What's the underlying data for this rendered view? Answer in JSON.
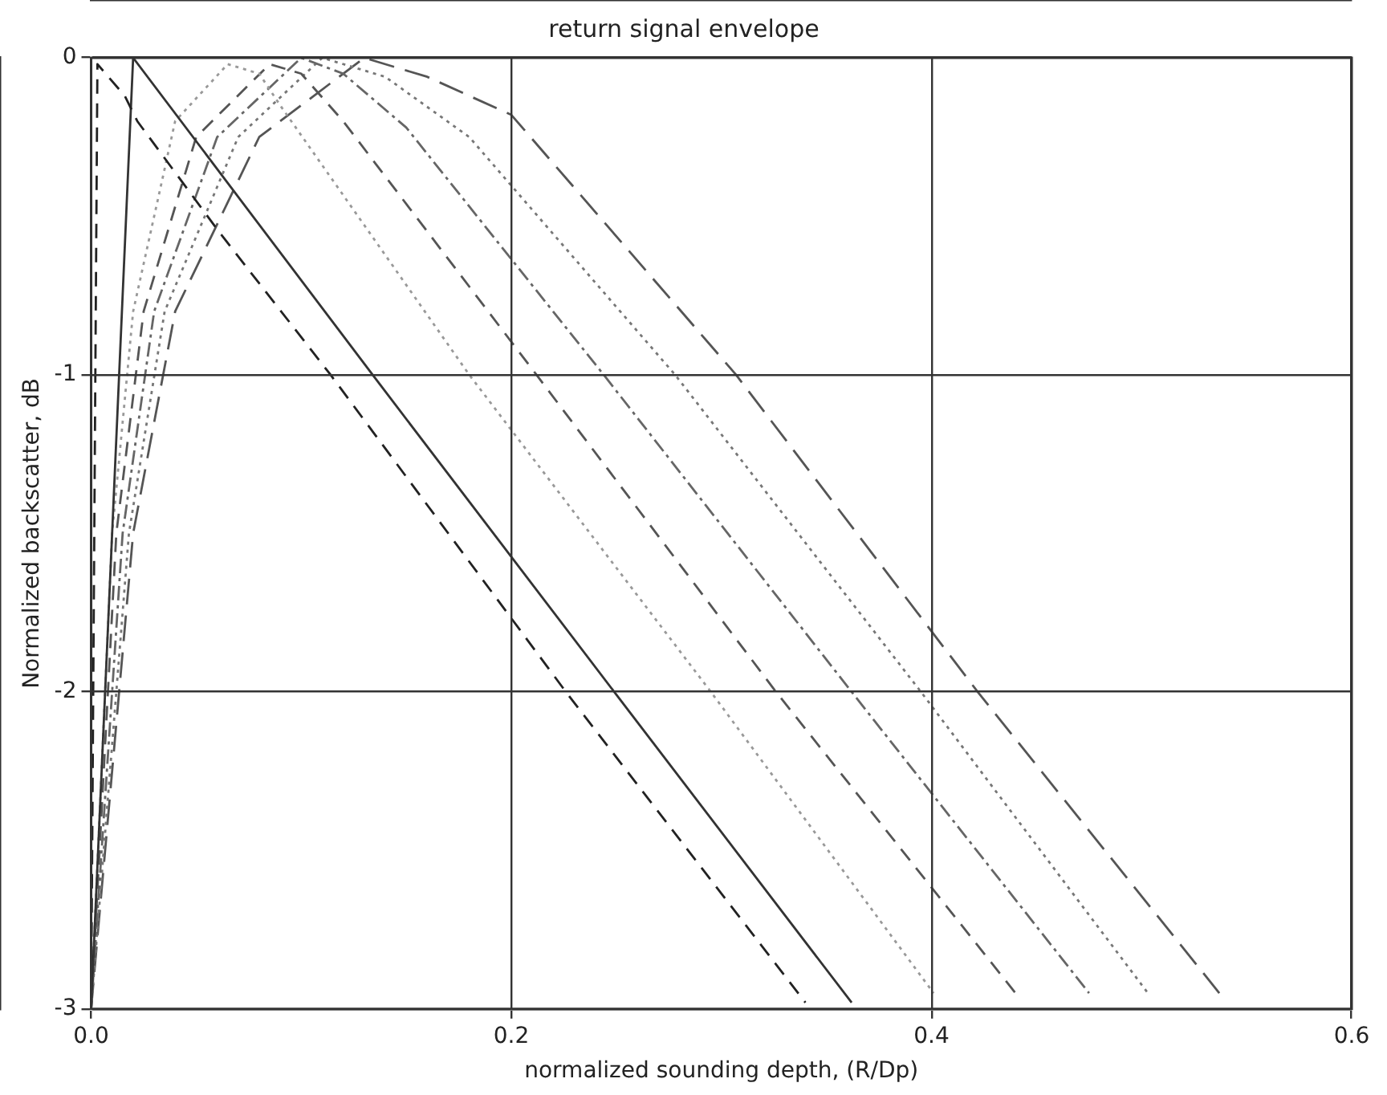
{
  "chart_data": {
    "type": "line",
    "title": "return signal envelope",
    "xlabel": "normalized sounding depth, (R/Dp)",
    "ylabel": "Normalized backscatter, dB",
    "xlim": [
      0,
      0.6
    ],
    "xticks": [
      {
        "value": 0,
        "label": "0.0"
      },
      0.2,
      0.4,
      0.6
    ],
    "ylim": [
      -3,
      0
    ],
    "yticks": [
      -3,
      -2,
      -1,
      0
    ],
    "grid": true,
    "legend": false,
    "marker": "none",
    "series": [
      {
        "color": "#222222",
        "line_style": "dashed",
        "x": [
          0,
          0.003,
          0.016,
          0.022,
          0.061,
          0.114,
          0.226,
          0.34
        ],
        "values": [
          -3,
          -0.02,
          -0.12,
          -0.2,
          -0.55,
          -1,
          -2,
          -2.98
        ]
      },
      {
        "color": "#333333",
        "line_style": "solid",
        "x": [
          0,
          0.01,
          0.02,
          0.134,
          0.249,
          0.362
        ],
        "values": [
          -3,
          -1.5,
          0,
          -1,
          -2,
          -2.98
        ]
      },
      {
        "color": "#999999",
        "line_style": "dotted",
        "x": [
          0,
          0.01,
          0.02,
          0.04,
          0.065,
          0.08,
          0.09,
          0.18,
          0.295,
          0.401
        ],
        "values": [
          -3,
          -1.5,
          -0.8,
          -0.2,
          -0.02,
          -0.05,
          -0.15,
          -1,
          -2,
          -2.95
        ]
      },
      {
        "color": "#555555",
        "line_style": "dashed",
        "x": [
          0,
          0.012,
          0.025,
          0.05,
          0.085,
          0.1,
          0.12,
          0.212,
          0.326,
          0.44
        ],
        "values": [
          -3,
          -1.5,
          -0.8,
          -0.25,
          -0.02,
          -0.05,
          -0.2,
          -1,
          -2,
          -2.95
        ]
      },
      {
        "color": "#666666",
        "line_style": "dashdot",
        "x": [
          0,
          0.015,
          0.03,
          0.06,
          0.1,
          0.12,
          0.15,
          0.244,
          0.362,
          0.475
        ],
        "values": [
          -3,
          -1.5,
          -0.8,
          -0.25,
          0,
          -0.05,
          -0.22,
          -1,
          -2,
          -2.95
        ]
      },
      {
        "color": "#777777",
        "line_style": "dotted",
        "x": [
          0,
          0.018,
          0.035,
          0.07,
          0.11,
          0.14,
          0.18,
          0.278,
          0.395,
          0.503
        ],
        "values": [
          -3,
          -1.5,
          -0.8,
          -0.25,
          0,
          -0.06,
          -0.25,
          -1,
          -2,
          -2.95
        ]
      },
      {
        "color": "#555555",
        "line_style": "longdash",
        "x": [
          0,
          0.02,
          0.04,
          0.08,
          0.13,
          0.16,
          0.2,
          0.307,
          0.422,
          0.537
        ],
        "values": [
          -3,
          -1.5,
          -0.8,
          -0.25,
          0,
          -0.06,
          -0.18,
          -1,
          -2,
          -2.95
        ]
      }
    ]
  }
}
